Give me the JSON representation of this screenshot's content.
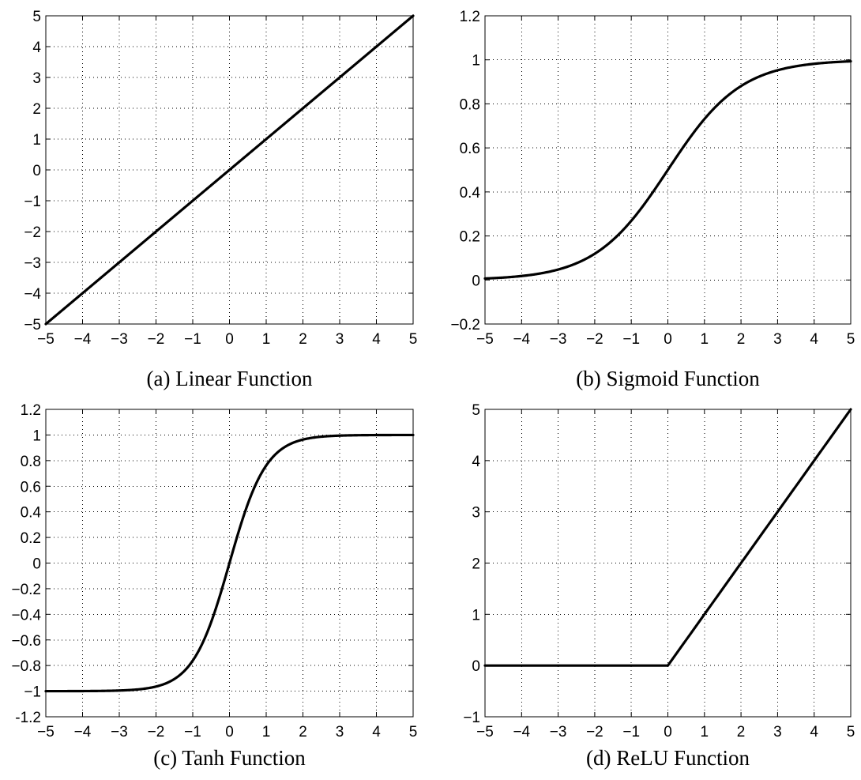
{
  "chart_data": [
    {
      "type": "line",
      "function": "linear",
      "caption": "(a) Linear Function",
      "xlim": [
        -5,
        5
      ],
      "ylim": [
        -5,
        5
      ],
      "xticks": [
        -5,
        -4,
        -3,
        -2,
        -1,
        0,
        1,
        2,
        3,
        4,
        5
      ],
      "xtick_labels": [
        "−5",
        "−4",
        "−3",
        "−2",
        "−1",
        "0",
        "1",
        "2",
        "3",
        "4",
        "5"
      ],
      "yticks": [
        -5,
        -4,
        -3,
        -2,
        -1,
        0,
        1,
        2,
        3,
        4,
        5
      ],
      "ytick_labels": [
        "−5",
        "−4",
        "−3",
        "−2",
        "−1",
        "0",
        "1",
        "2",
        "3",
        "4",
        "5"
      ],
      "grid": true,
      "grid_style": "dotted",
      "line_color": "#000000",
      "x": [
        -5,
        5
      ],
      "y": [
        -5,
        5
      ]
    },
    {
      "type": "line",
      "function": "sigmoid",
      "caption": "(b) Sigmoid Function",
      "xlim": [
        -5,
        5
      ],
      "ylim": [
        -0.2,
        1.2
      ],
      "xticks": [
        -5,
        -4,
        -3,
        -2,
        -1,
        0,
        1,
        2,
        3,
        4,
        5
      ],
      "xtick_labels": [
        "−5",
        "−4",
        "−3",
        "−2",
        "−1",
        "0",
        "1",
        "2",
        "3",
        "4",
        "5"
      ],
      "yticks": [
        -0.2,
        0,
        0.2,
        0.4,
        0.6,
        0.8,
        1,
        1.2
      ],
      "ytick_labels": [
        "−0.2",
        "0",
        "0.2",
        "0.4",
        "0.6",
        "0.8",
        "1",
        "1.2"
      ],
      "grid": true,
      "grid_style": "dotted",
      "line_color": "#000000",
      "x": [
        -5,
        -4,
        -3,
        -2,
        -1,
        0,
        1,
        2,
        3,
        4,
        5
      ],
      "y": [
        0.007,
        0.018,
        0.047,
        0.119,
        0.269,
        0.5,
        0.731,
        0.881,
        0.953,
        0.982,
        0.993
      ]
    },
    {
      "type": "line",
      "function": "tanh",
      "caption": "(c) Tanh Function",
      "xlim": [
        -5,
        5
      ],
      "ylim": [
        -1.2,
        1.2
      ],
      "xticks": [
        -5,
        -4,
        -3,
        -2,
        -1,
        0,
        1,
        2,
        3,
        4,
        5
      ],
      "xtick_labels": [
        "−5",
        "−4",
        "−3",
        "−2",
        "−1",
        "0",
        "1",
        "2",
        "3",
        "4",
        "5"
      ],
      "yticks": [
        -1.2,
        -1,
        -0.8,
        -0.6,
        -0.4,
        -0.2,
        0,
        0.2,
        0.4,
        0.6,
        0.8,
        1,
        1.2
      ],
      "ytick_labels": [
        "-1.2",
        "−1",
        "−0.8",
        "−0.6",
        "−0.4",
        "−0.2",
        "0",
        "0.2",
        "0.4",
        "0.6",
        "0.8",
        "1",
        "1.2"
      ],
      "grid": true,
      "grid_style": "dotted",
      "line_color": "#000000",
      "x": [
        -5,
        -4,
        -3,
        -2,
        -1,
        0,
        1,
        2,
        3,
        4,
        5
      ],
      "y": [
        -1.0,
        -0.999,
        -0.995,
        -0.964,
        -0.762,
        0,
        0.762,
        0.964,
        0.995,
        0.999,
        1.0
      ]
    },
    {
      "type": "line",
      "function": "relu",
      "caption": "(d) ReLU Function",
      "xlim": [
        -5,
        5
      ],
      "ylim": [
        -1,
        5
      ],
      "xticks": [
        -5,
        -4,
        -3,
        -2,
        -1,
        0,
        1,
        2,
        3,
        4,
        5
      ],
      "xtick_labels": [
        "−5",
        "−4",
        "−3",
        "−2",
        "−1",
        "0",
        "1",
        "2",
        "3",
        "4",
        "5"
      ],
      "yticks": [
        -1,
        0,
        1,
        2,
        3,
        4,
        5
      ],
      "ytick_labels": [
        "−1",
        "0",
        "1",
        "2",
        "3",
        "4",
        "5"
      ],
      "grid": true,
      "grid_style": "dotted",
      "line_color": "#000000",
      "x": [
        -5,
        0,
        5
      ],
      "y": [
        0,
        0,
        5
      ]
    }
  ]
}
